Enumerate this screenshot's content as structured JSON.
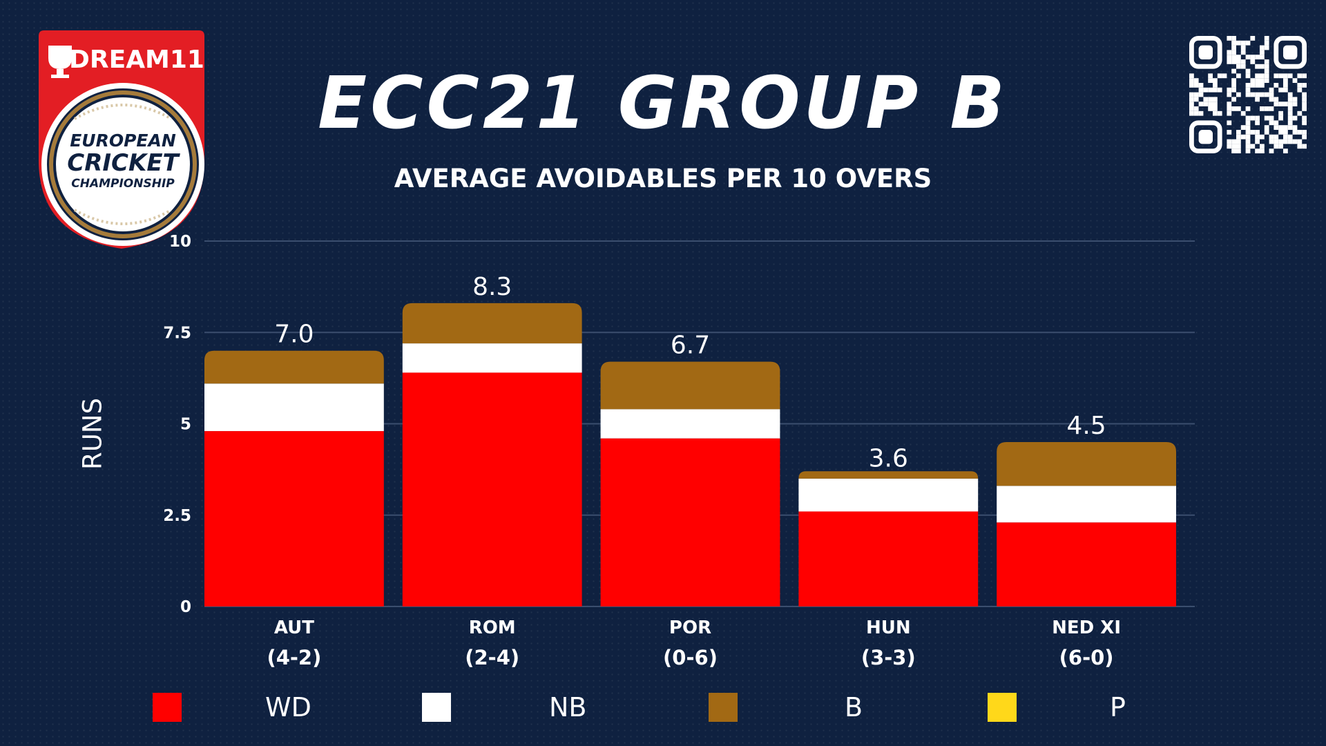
{
  "branding": {
    "sponsor": "DREAM11",
    "logo_line1": "EUROPEAN",
    "logo_line2": "CRICKET",
    "logo_line3": "CHAMPIONSHIP",
    "logo_red": "#e31e24",
    "logo_gold": "#a57b3b"
  },
  "colors": {
    "background": "#0f2140",
    "WD": "#ff0000",
    "NB": "#ffffff",
    "B": "#a26914",
    "P": "#ffd81a"
  },
  "chart_data": {
    "type": "bar",
    "stacked": true,
    "title": "ECC21 GROUP B",
    "subtitle": "AVERAGE AVOIDABLES PER 10 OVERS",
    "ylabel": "RUNS",
    "ylim": [
      0,
      10
    ],
    "yticks": [
      "0",
      "2.5",
      "5",
      "7.5",
      "10"
    ],
    "ytick_values": [
      0,
      2.5,
      5,
      7.5,
      10
    ],
    "categories": [
      "AUT",
      "ROM",
      "POR",
      "HUN",
      "NED XI"
    ],
    "records": [
      "(4-2)",
      "(2-4)",
      "(0-6)",
      "(3-3)",
      "(6-0)"
    ],
    "series": [
      {
        "name": "WD",
        "values": [
          4.8,
          6.4,
          4.6,
          2.6,
          2.3
        ]
      },
      {
        "name": "NB",
        "values": [
          1.3,
          0.8,
          0.8,
          0.9,
          1.0
        ]
      },
      {
        "name": "B",
        "values": [
          0.9,
          1.1,
          1.3,
          0.2,
          1.2
        ]
      },
      {
        "name": "P",
        "values": [
          0,
          0,
          0,
          0,
          0
        ]
      }
    ],
    "totals": [
      "7.0",
      "8.3",
      "6.7",
      "3.6",
      "4.5"
    ],
    "total_values": [
      7.0,
      8.3,
      6.7,
      3.6,
      4.5
    ],
    "grid": true,
    "legend_placement": "bottom"
  }
}
